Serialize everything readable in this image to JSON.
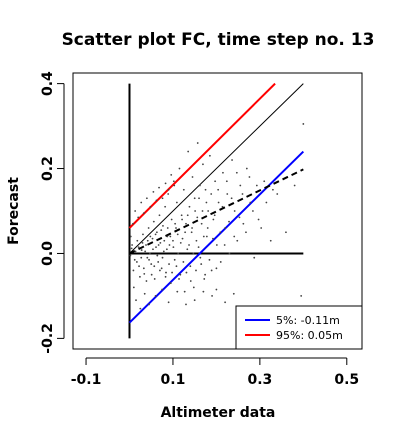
{
  "chart_data": {
    "type": "scatter",
    "title": "Scatter plot FC, time step no. 13",
    "xlabel": "Altimeter data",
    "ylabel": "Forecast",
    "xlim": [
      -0.13,
      0.535
    ],
    "ylim": [
      -0.225,
      0.425
    ],
    "xticks": [
      -0.1,
      0.1,
      0.3,
      0.5
    ],
    "xtick_labels": [
      "-0.1",
      "0.1",
      "0.3",
      "0.5"
    ],
    "yticks": [
      -0.2,
      0.0,
      0.2,
      0.4
    ],
    "ytick_labels": [
      "-0.2",
      "0.0",
      "0.2",
      "0.4"
    ],
    "grid": false,
    "legend_position": "bottom-right",
    "legend": [
      {
        "label": "5%: -0.11m",
        "color": "#0000ff"
      },
      {
        "label": "95%:  0.05m",
        "color": "#ff0000"
      }
    ],
    "reference_lines": [
      {
        "kind": "identity",
        "color": "#000000",
        "style": "solid-thin",
        "x": [
          0.0,
          0.4
        ],
        "y": [
          0.0,
          0.4
        ]
      },
      {
        "kind": "vertical-axis",
        "color": "#000000",
        "style": "solid",
        "x": [
          0.0,
          0.0
        ],
        "y": [
          -0.2,
          0.4
        ]
      },
      {
        "kind": "horizontal-axis",
        "color": "#000000",
        "style": "solid",
        "x": [
          0.0,
          0.4
        ],
        "y": [
          0.0,
          0.0
        ]
      },
      {
        "kind": "upper-95",
        "color": "#ff0000",
        "style": "solid",
        "x": [
          0.0,
          0.335
        ],
        "y": [
          0.06,
          0.4
        ]
      },
      {
        "kind": "lower-5",
        "color": "#0000ff",
        "style": "solid",
        "x": [
          0.0,
          0.4
        ],
        "y": [
          -0.163,
          0.24
        ]
      },
      {
        "kind": "regression",
        "color": "#000000",
        "style": "dashed",
        "x": [
          0.0,
          0.4
        ],
        "y": [
          0.0,
          0.198
        ]
      }
    ],
    "points": [
      [
        0.005,
        0.012
      ],
      [
        0.012,
        -0.015
      ],
      [
        0.018,
        0.03
      ],
      [
        0.022,
        -0.03
      ],
      [
        0.028,
        0.008
      ],
      [
        0.031,
        0.045
      ],
      [
        0.034,
        -0.048
      ],
      [
        0.038,
        0.02
      ],
      [
        0.041,
        -0.01
      ],
      [
        0.044,
        0.06
      ],
      [
        0.047,
        0.0
      ],
      [
        0.05,
        -0.025
      ],
      [
        0.053,
        0.035
      ],
      [
        0.056,
        0.075
      ],
      [
        0.058,
        -0.06
      ],
      [
        0.061,
        0.015
      ],
      [
        0.063,
        0.05
      ],
      [
        0.066,
        -0.02
      ],
      [
        0.069,
        0.09
      ],
      [
        0.071,
        0.025
      ],
      [
        0.074,
        -0.035
      ],
      [
        0.077,
        0.065
      ],
      [
        0.079,
        0.005
      ],
      [
        0.082,
        0.11
      ],
      [
        0.084,
        -0.045
      ],
      [
        0.087,
        0.04
      ],
      [
        0.089,
        0.14
      ],
      [
        0.092,
        0.02
      ],
      [
        0.095,
        -0.07
      ],
      [
        0.097,
        0.08
      ],
      [
        0.1,
        0.03
      ],
      [
        0.102,
        0.17
      ],
      [
        0.104,
        -0.015
      ],
      [
        0.107,
        0.06
      ],
      [
        0.109,
        0.12
      ],
      [
        0.112,
        0.0
      ],
      [
        0.115,
        0.2
      ],
      [
        0.117,
        -0.05
      ],
      [
        0.12,
        0.09
      ],
      [
        0.122,
        0.035
      ],
      [
        0.125,
        0.15
      ],
      [
        0.127,
        -0.09
      ],
      [
        0.13,
        0.07
      ],
      [
        0.133,
        0.01
      ],
      [
        0.135,
        0.24
      ],
      [
        0.138,
        0.11
      ],
      [
        0.14,
        -0.03
      ],
      [
        0.143,
        0.05
      ],
      [
        0.145,
        0.18
      ],
      [
        0.148,
        -0.08
      ],
      [
        0.151,
        0.1
      ],
      [
        0.154,
        0.03
      ],
      [
        0.157,
        0.26
      ],
      [
        0.16,
        0.13
      ],
      [
        0.163,
        -0.01
      ],
      [
        0.166,
        0.07
      ],
      [
        0.169,
        0.21
      ],
      [
        0.172,
        -0.06
      ],
      [
        0.175,
        0.15
      ],
      [
        0.178,
        0.04
      ],
      [
        0.181,
        0.1
      ],
      [
        0.185,
        0.23
      ],
      [
        0.189,
        -0.04
      ],
      [
        0.193,
        0.08
      ],
      [
        0.197,
        0.17
      ],
      [
        0.201,
        0.02
      ],
      [
        0.205,
        0.12
      ],
      [
        0.21,
        -0.02
      ],
      [
        0.215,
        0.19
      ],
      [
        0.22,
        0.06
      ],
      [
        0.225,
        0.14
      ],
      [
        0.23,
        0.0
      ],
      [
        0.236,
        0.22
      ],
      [
        0.242,
        0.1
      ],
      [
        0.248,
        0.03
      ],
      [
        0.255,
        0.16
      ],
      [
        0.262,
        0.07
      ],
      [
        0.27,
        0.2
      ],
      [
        0.278,
        0.12
      ],
      [
        0.287,
        -0.01
      ],
      [
        0.297,
        0.08
      ],
      [
        0.31,
        0.17
      ],
      [
        0.325,
        0.03
      ],
      [
        0.34,
        0.14
      ],
      [
        0.36,
        0.05
      ],
      [
        0.38,
        0.16
      ],
      [
        0.4,
        0.305
      ],
      [
        0.395,
        -0.1
      ],
      [
        0.01,
        -0.08
      ],
      [
        0.015,
        -0.11
      ],
      [
        0.025,
        -0.13
      ],
      [
        0.035,
        -0.095
      ],
      [
        0.045,
        -0.12
      ],
      [
        0.06,
        -0.1
      ],
      [
        0.075,
        -0.085
      ],
      [
        0.09,
        -0.115
      ],
      [
        0.11,
        -0.09
      ],
      [
        0.13,
        -0.12
      ],
      [
        0.15,
        -0.11
      ],
      [
        0.17,
        -0.09
      ],
      [
        0.19,
        -0.1
      ],
      [
        0.2,
        -0.085
      ],
      [
        0.22,
        -0.115
      ],
      [
        0.24,
        -0.095
      ],
      [
        0.003,
        0.04
      ],
      [
        0.008,
        0.07
      ],
      [
        0.013,
        0.1
      ],
      [
        0.02,
        0.085
      ],
      [
        0.027,
        0.12
      ],
      [
        0.033,
        0.095
      ],
      [
        0.04,
        0.13
      ],
      [
        0.048,
        0.11
      ],
      [
        0.055,
        0.145
      ],
      [
        0.062,
        0.125
      ],
      [
        0.068,
        0.155
      ],
      [
        0.076,
        0.13
      ],
      [
        0.083,
        0.165
      ],
      [
        0.09,
        0.15
      ],
      [
        0.096,
        0.185
      ],
      [
        0.103,
        0.16
      ],
      [
        0.002,
        -0.005
      ],
      [
        0.006,
        0.02
      ],
      [
        0.009,
        -0.04
      ],
      [
        0.014,
        0.005
      ],
      [
        0.017,
        -0.02
      ],
      [
        0.021,
        0.015
      ],
      [
        0.024,
        -0.055
      ],
      [
        0.027,
        -0.01
      ],
      [
        0.03,
        0.025
      ],
      [
        0.033,
        -0.035
      ],
      [
        0.036,
        0.005
      ],
      [
        0.039,
        -0.065
      ],
      [
        0.042,
        0.03
      ],
      [
        0.045,
        -0.015
      ],
      [
        0.048,
        0.04
      ],
      [
        0.051,
        -0.05
      ],
      [
        0.054,
        0.01
      ],
      [
        0.057,
        -0.03
      ],
      [
        0.06,
        0.045
      ],
      [
        0.064,
        -0.005
      ],
      [
        0.067,
        0.02
      ],
      [
        0.07,
        -0.04
      ],
      [
        0.073,
        0.055
      ],
      [
        0.076,
        -0.01
      ],
      [
        0.08,
        0.03
      ],
      [
        0.083,
        -0.055
      ],
      [
        0.086,
        0.01
      ],
      [
        0.088,
        0.06
      ],
      [
        0.091,
        -0.025
      ],
      [
        0.094,
        0.04
      ],
      [
        0.098,
        -0.045
      ],
      [
        0.101,
        0.015
      ],
      [
        0.105,
        0.07
      ],
      [
        0.108,
        -0.03
      ],
      [
        0.111,
        0.045
      ],
      [
        0.114,
        -0.06
      ],
      [
        0.118,
        0.025
      ],
      [
        0.121,
        0.08
      ],
      [
        0.124,
        -0.02
      ],
      [
        0.128,
        0.05
      ],
      [
        0.131,
        -0.045
      ],
      [
        0.134,
        0.09
      ],
      [
        0.137,
        0.02
      ],
      [
        0.141,
        -0.065
      ],
      [
        0.144,
        0.06
      ],
      [
        0.147,
        0.0
      ],
      [
        0.15,
        0.13
      ],
      [
        0.153,
        -0.04
      ],
      [
        0.156,
        0.085
      ],
      [
        0.159,
        0.015
      ],
      [
        0.162,
        0.16
      ],
      [
        0.165,
        -0.025
      ],
      [
        0.168,
        0.1
      ],
      [
        0.171,
        0.04
      ],
      [
        0.174,
        -0.05
      ],
      [
        0.177,
        0.12
      ],
      [
        0.18,
        0.06
      ],
      [
        0.184,
        -0.015
      ],
      [
        0.188,
        0.14
      ],
      [
        0.192,
        0.035
      ],
      [
        0.196,
        0.09
      ],
      [
        0.2,
        -0.035
      ],
      [
        0.204,
        0.15
      ],
      [
        0.209,
        0.05
      ],
      [
        0.214,
        0.11
      ],
      [
        0.219,
        0.02
      ],
      [
        0.224,
        0.17
      ],
      [
        0.229,
        0.075
      ],
      [
        0.235,
        0.13
      ],
      [
        0.241,
        0.04
      ],
      [
        0.247,
        0.19
      ],
      [
        0.253,
        0.085
      ],
      [
        0.26,
        0.14
      ],
      [
        0.268,
        0.05
      ],
      [
        0.276,
        0.18
      ],
      [
        0.284,
        0.1
      ],
      [
        0.293,
        0.16
      ],
      [
        0.303,
        0.06
      ],
      [
        0.315,
        0.12
      ],
      [
        0.33,
        0.15
      ]
    ]
  }
}
